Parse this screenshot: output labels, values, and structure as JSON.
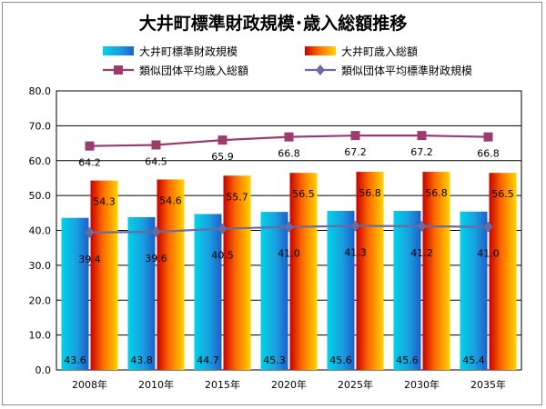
{
  "chart_data": {
    "type": "bar",
    "title": "大井町標準財政規模･歳入総額推移",
    "xlabel": "",
    "ylabel": "",
    "categories": [
      "2008年",
      "2010年",
      "2015年",
      "2020年",
      "2025年",
      "2030年",
      "2035年"
    ],
    "ylim": [
      0,
      80
    ],
    "yticks": [
      "0.0",
      "10.0",
      "20.0",
      "30.0",
      "40.0",
      "50.0",
      "60.0",
      "70.0",
      "80.0"
    ],
    "grid": true,
    "legend_position": "top",
    "series": [
      {
        "name": "大井町標準財政規模",
        "kind": "bar",
        "color": "#1a9fe0",
        "values": [
          43.6,
          43.8,
          44.7,
          45.3,
          45.6,
          45.6,
          45.4
        ]
      },
      {
        "name": "大井町歳入総額",
        "kind": "bar",
        "color": "#ff8a00",
        "values": [
          54.3,
          54.6,
          55.7,
          56.5,
          56.8,
          56.8,
          56.5
        ]
      },
      {
        "name": "類似団体平均歳入総額",
        "kind": "line",
        "color": "#9b3b6e",
        "marker": "square",
        "values": [
          64.2,
          64.5,
          65.9,
          66.8,
          67.2,
          67.2,
          66.8
        ]
      },
      {
        "name": "類似団体平均標準財政規模",
        "kind": "line",
        "color": "#6b6ba0",
        "marker": "diamond",
        "values": [
          39.4,
          39.6,
          40.5,
          41.0,
          41.3,
          41.2,
          41.0
        ]
      }
    ]
  }
}
